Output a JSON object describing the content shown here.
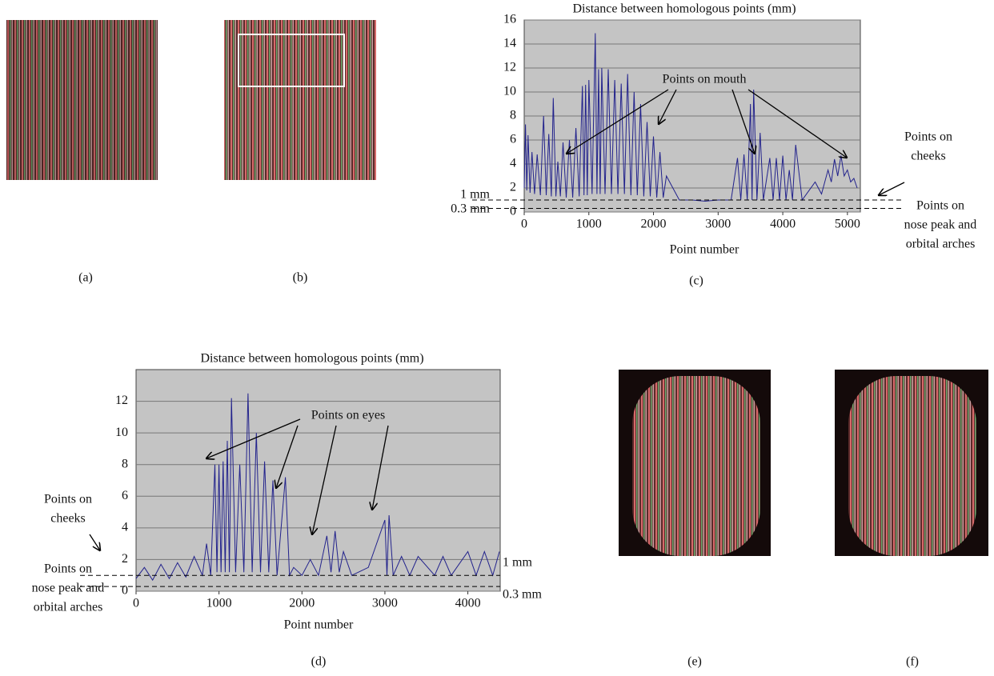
{
  "panel_labels": [
    "(a)",
    "(b)",
    "(c)",
    "(d)",
    "(e)",
    "(f)"
  ],
  "chart_data": [
    {
      "type": "line",
      "title": "Distance between homologous points (mm)",
      "x_label": "Point number",
      "background": "#c4c4c4",
      "grid": true,
      "xlim": [
        0,
        5200
      ],
      "xticks": [
        0,
        1000,
        2000,
        3000,
        4000,
        5000
      ],
      "ylim": [
        0,
        16
      ],
      "yticks": [
        0,
        2,
        4,
        6,
        8,
        10,
        12,
        14,
        16
      ],
      "x": [
        0,
        20,
        40,
        60,
        90,
        120,
        160,
        200,
        250,
        300,
        340,
        380,
        420,
        450,
        490,
        520,
        560,
        600,
        650,
        700,
        750,
        800,
        850,
        900,
        925,
        950,
        975,
        1000,
        1050,
        1100,
        1125,
        1150,
        1175,
        1200,
        1250,
        1300,
        1350,
        1400,
        1450,
        1500,
        1550,
        1600,
        1650,
        1700,
        1750,
        1800,
        1850,
        1900,
        1950,
        2000,
        2050,
        2100,
        2150,
        2200,
        2400,
        2600,
        2800,
        3000,
        3200,
        3300,
        3350,
        3400,
        3450,
        3500,
        3525,
        3550,
        3600,
        3650,
        3700,
        3800,
        3850,
        3900,
        3950,
        4000,
        4050,
        4100,
        4150,
        4200,
        4300,
        4500,
        4600,
        4700,
        4750,
        4800,
        4850,
        4900,
        4950,
        5000,
        5050,
        5100,
        5150
      ],
      "series": [
        {
          "color": "#22228c",
          "values": [
            2,
            7.3,
            1.8,
            6.4,
            1.6,
            5,
            1.5,
            4.8,
            1.4,
            8,
            1.4,
            6.5,
            1.3,
            9.5,
            1.3,
            4.2,
            1.3,
            5.8,
            1.2,
            6,
            1.2,
            7,
            1.3,
            10.5,
            1.4,
            10.6,
            1.4,
            11,
            1.5,
            14.9,
            1.5,
            11.9,
            1.5,
            12,
            1.5,
            11.9,
            1.5,
            11,
            1.5,
            10.7,
            1.5,
            11.5,
            1.4,
            10,
            1.4,
            9,
            1.3,
            7.5,
            1.3,
            6.3,
            1.2,
            5,
            1.2,
            3,
            1,
            1,
            0.9,
            1,
            1,
            4.5,
            1,
            4.8,
            1,
            9,
            1,
            10.2,
            1,
            6.6,
            1,
            4.5,
            1,
            4.5,
            1,
            4.7,
            1,
            3.5,
            1,
            5.6,
            1,
            2.5,
            1.5,
            3.5,
            2.5,
            4.4,
            3,
            4.7,
            3,
            3.5,
            2.5,
            2.8,
            2
          ]
        }
      ],
      "ref_lines": [
        {
          "value": 1,
          "label": "1 mm"
        },
        {
          "value": 0.3,
          "label": "0.3 mm"
        }
      ],
      "annotations": [
        {
          "text": [
            "Points on mouth"
          ]
        },
        {
          "text": [
            "Points on",
            "cheeks"
          ]
        },
        {
          "text": [
            "Points on",
            "nose peak and",
            "orbital arches"
          ]
        }
      ]
    },
    {
      "type": "line",
      "title": "Distance between homologous points (mm)",
      "x_label": "Point number",
      "background": "#c4c4c4",
      "grid": true,
      "xlim": [
        0,
        4390
      ],
      "xticks": [
        0,
        1000,
        2000,
        3000,
        4000
      ],
      "ylim": [
        0,
        14
      ],
      "yticks": [
        0,
        2,
        4,
        6,
        8,
        10,
        12
      ],
      "x": [
        0,
        100,
        200,
        300,
        400,
        500,
        600,
        700,
        800,
        850,
        900,
        950,
        975,
        1000,
        1025,
        1050,
        1075,
        1100,
        1125,
        1150,
        1200,
        1250,
        1300,
        1350,
        1400,
        1450,
        1500,
        1550,
        1600,
        1650,
        1700,
        1800,
        1850,
        1900,
        2000,
        2100,
        2200,
        2300,
        2350,
        2400,
        2450,
        2500,
        2600,
        2800,
        3000,
        3025,
        3050,
        3100,
        3200,
        3300,
        3400,
        3600,
        3700,
        3800,
        4000,
        4100,
        4200,
        4300,
        4380
      ],
      "series": [
        {
          "color": "#22228c",
          "values": [
            0.8,
            1.5,
            0.7,
            1.7,
            0.8,
            1.8,
            0.9,
            2.2,
            1,
            3,
            1,
            8,
            1.2,
            8,
            1.2,
            8.2,
            1.2,
            9.5,
            1.2,
            12.2,
            1.2,
            8,
            1.2,
            12.5,
            1.2,
            10,
            1.2,
            8.2,
            1.2,
            7,
            1,
            7.2,
            1,
            1.5,
            1,
            2,
            1,
            3.5,
            1.2,
            3.8,
            1.2,
            2.5,
            1,
            1.5,
            4.5,
            1,
            4.8,
            1,
            2.2,
            1,
            2.2,
            1,
            2.2,
            1,
            2.5,
            1,
            2.5,
            1,
            2.5
          ]
        }
      ],
      "ref_lines": [
        {
          "value": 1,
          "label": "1 mm"
        },
        {
          "value": 0.3,
          "label": "0.3 mm"
        }
      ],
      "annotations": [
        {
          "text": [
            "Points on eyes"
          ]
        },
        {
          "text": [
            "Points on",
            "cheeks"
          ]
        },
        {
          "text": [
            "Points on",
            "nose peak and",
            "orbital arches"
          ]
        }
      ]
    }
  ]
}
